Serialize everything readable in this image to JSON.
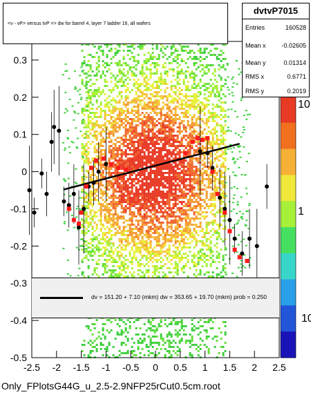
{
  "title": "<v - vP>       versus  tvP =>  dw for barrel 4, layer 7 ladder 16, all wafers",
  "stats": {
    "name": "dvtvP7015",
    "rows": [
      {
        "label": "Entries",
        "value": "160528"
      },
      {
        "label": "Mean x",
        "value": "-0.02605"
      },
      {
        "label": "Mean y",
        "value": "0.01314"
      },
      {
        "label": "RMS x",
        "value": "0.6771"
      },
      {
        "label": "RMS y",
        "value": "0.2019"
      }
    ]
  },
  "fit_text": "dv =  151.20 +  7.10 (mkm) dw =  353.65 + 19.70 (mkm) prob = 0.250",
  "filename": "Only_FPlotsG44G_u_2.5-2.9NFP25rCut0.5cm.root",
  "chart_data": {
    "type": "scatter",
    "xlim": [
      -2.5,
      2.5
    ],
    "ylim": [
      -0.5,
      0.35
    ],
    "x_ticks": [
      "-2.5",
      "-2",
      "-1.5",
      "-1",
      "-0.5",
      "0",
      "0.5",
      "1",
      "1.5",
      "2",
      "2.5"
    ],
    "y_ticks": [
      "-0.5",
      "-0.4",
      "-0.3",
      "-0.2",
      "-0.1",
      "0",
      "0.1",
      "0.2",
      "0.3"
    ],
    "z_scale": "log",
    "z_tick_labels": [
      "10",
      "1"
    ],
    "fit_line": {
      "x": [
        -1.85,
        1.7
      ],
      "y": [
        -0.048,
        0.075
      ]
    },
    "profile_black": [
      {
        "x": -2.3,
        "y": -0.005
      },
      {
        "x": -2.2,
        "y": -0.06
      },
      {
        "x": -2.1,
        "y": 0.08
      },
      {
        "x": -2.05,
        "y": 0.12
      },
      {
        "x": -1.95,
        "y": 0.11
      },
      {
        "x": -1.85,
        "y": -0.08
      },
      {
        "x": -1.75,
        "y": -0.09
      },
      {
        "x": -1.65,
        "y": -0.06
      },
      {
        "x": -1.55,
        "y": -0.15
      },
      {
        "x": -1.45,
        "y": -0.1
      },
      {
        "x": -1.35,
        "y": -0.04
      },
      {
        "x": -1.25,
        "y": -0.03
      },
      {
        "x": -1.15,
        "y": 0.0
      },
      {
        "x": -1.0,
        "y": 0.02
      },
      {
        "x": 0.9,
        "y": 0.055
      },
      {
        "x": 1.05,
        "y": 0.05
      },
      {
        "x": 1.15,
        "y": 0.01
      },
      {
        "x": 1.3,
        "y": -0.07
      },
      {
        "x": 1.4,
        "y": -0.1
      },
      {
        "x": 1.5,
        "y": -0.13
      },
      {
        "x": 1.6,
        "y": -0.18
      },
      {
        "x": 1.75,
        "y": -0.22
      },
      {
        "x": 1.9,
        "y": -0.18
      },
      {
        "x": 2.05,
        "y": -0.2
      },
      {
        "x": -2.55,
        "y": -0.05
      },
      {
        "x": -2.45,
        "y": -0.11
      },
      {
        "x": 2.25,
        "y": -0.04
      }
    ],
    "profile_red": [
      {
        "x": -1.75,
        "y": -0.1
      },
      {
        "x": -1.65,
        "y": -0.13
      },
      {
        "x": -1.55,
        "y": -0.14
      },
      {
        "x": -1.5,
        "y": -0.11
      },
      {
        "x": -1.4,
        "y": -0.04
      },
      {
        "x": -1.3,
        "y": 0.01
      },
      {
        "x": -1.2,
        "y": 0.03
      },
      {
        "x": -1.05,
        "y": 0.035
      },
      {
        "x": -0.9,
        "y": 0.02
      },
      {
        "x": -0.75,
        "y": 0.01
      },
      {
        "x": -0.6,
        "y": 0.005
      },
      {
        "x": 0.6,
        "y": 0.05
      },
      {
        "x": 0.75,
        "y": 0.08
      },
      {
        "x": 0.85,
        "y": 0.09
      },
      {
        "x": 0.95,
        "y": 0.085
      },
      {
        "x": 1.05,
        "y": 0.09
      },
      {
        "x": 1.15,
        "y": 0.0
      },
      {
        "x": 1.25,
        "y": -0.06
      },
      {
        "x": 1.4,
        "y": -0.11
      },
      {
        "x": 1.5,
        "y": -0.16
      },
      {
        "x": 1.6,
        "y": -0.21
      },
      {
        "x": 1.7,
        "y": -0.23
      },
      {
        "x": 1.85,
        "y": -0.24
      }
    ]
  }
}
